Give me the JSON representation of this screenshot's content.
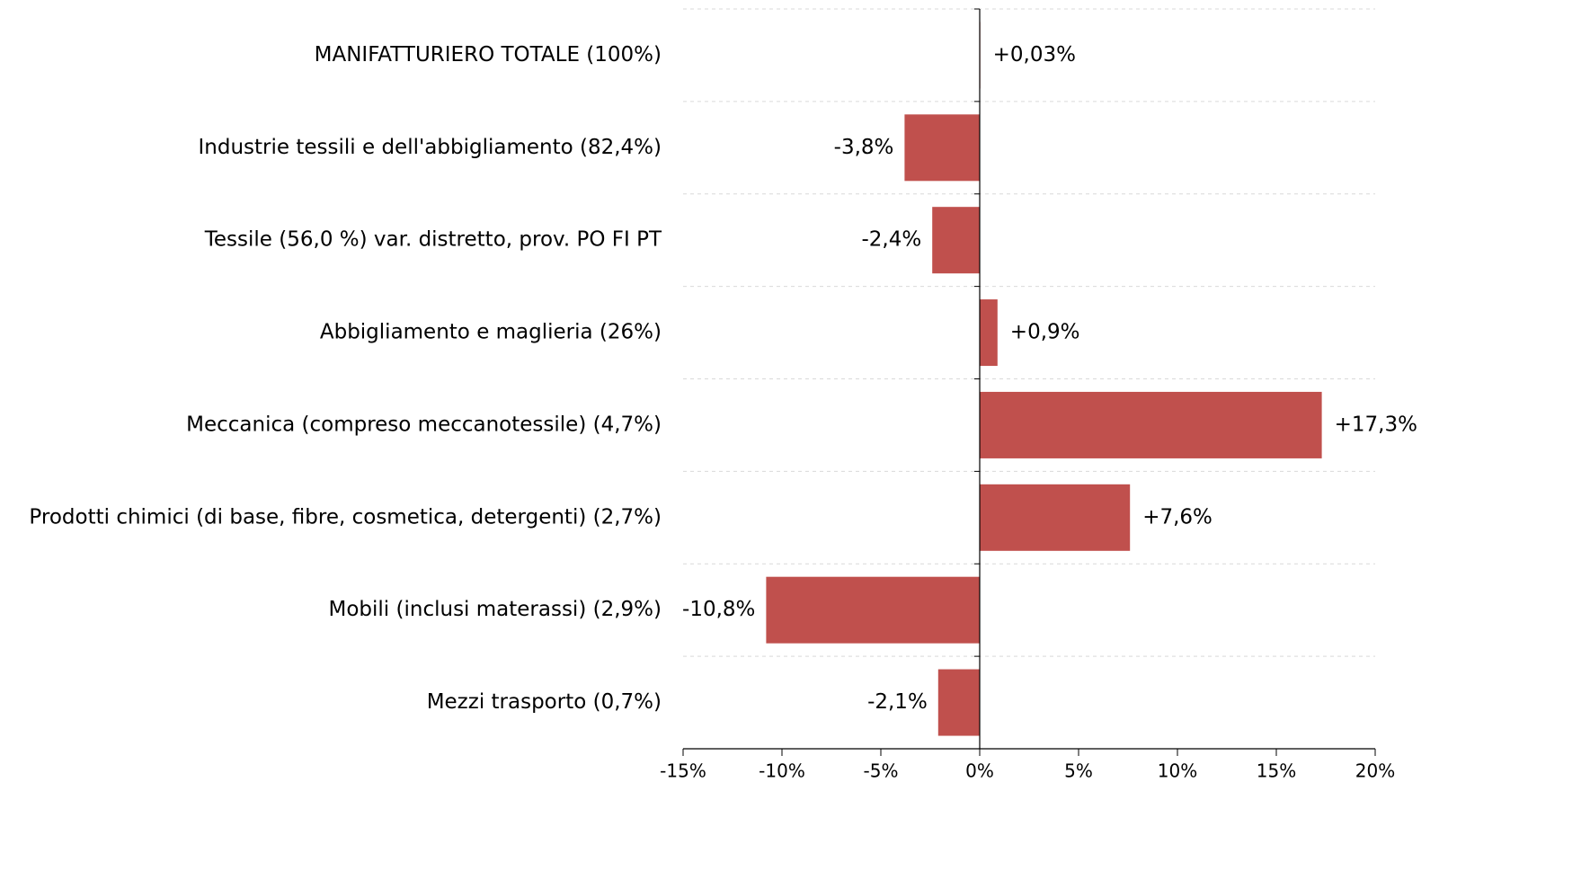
{
  "chart_data": {
    "type": "bar",
    "orientation": "horizontal",
    "categories": [
      "MANIFATTURIERO TOTALE (100%)",
      "Industrie tessili e dell'abbigliamento (82,4%)",
      "Tessile (56,0 %) var. distretto, prov. PO FI PT",
      "Abbigliamento e maglieria (26%)",
      "Meccanica (compreso meccanotessile) (4,7%)",
      "Prodotti chimici (di base, fibre, cosmetica, detergenti) (2,7%)",
      "Mobili (inclusi materassi) (2,9%)",
      "Mezzi trasporto (0,7%)"
    ],
    "values": [
      0.03,
      -3.8,
      -2.4,
      0.9,
      17.3,
      7.6,
      -10.8,
      -2.1
    ],
    "value_labels": [
      "+0,03%",
      "-3,8%",
      "-2,4%",
      "+0,9%",
      "+17,3%",
      "+7,6%",
      "-10,8%",
      "-2,1%"
    ],
    "color": "#c0504d",
    "xlim": [
      -15,
      20
    ],
    "xticks": [
      {
        "value": -15,
        "label": "-15%"
      },
      {
        "value": -10,
        "label": "-10%"
      },
      {
        "value": -5,
        "label": "-5%"
      },
      {
        "value": 0,
        "label": "0%"
      },
      {
        "value": 5,
        "label": "5%"
      },
      {
        "value": 10,
        "label": "10%"
      },
      {
        "value": 15,
        "label": "15%"
      },
      {
        "value": 20,
        "label": "20%"
      }
    ]
  }
}
